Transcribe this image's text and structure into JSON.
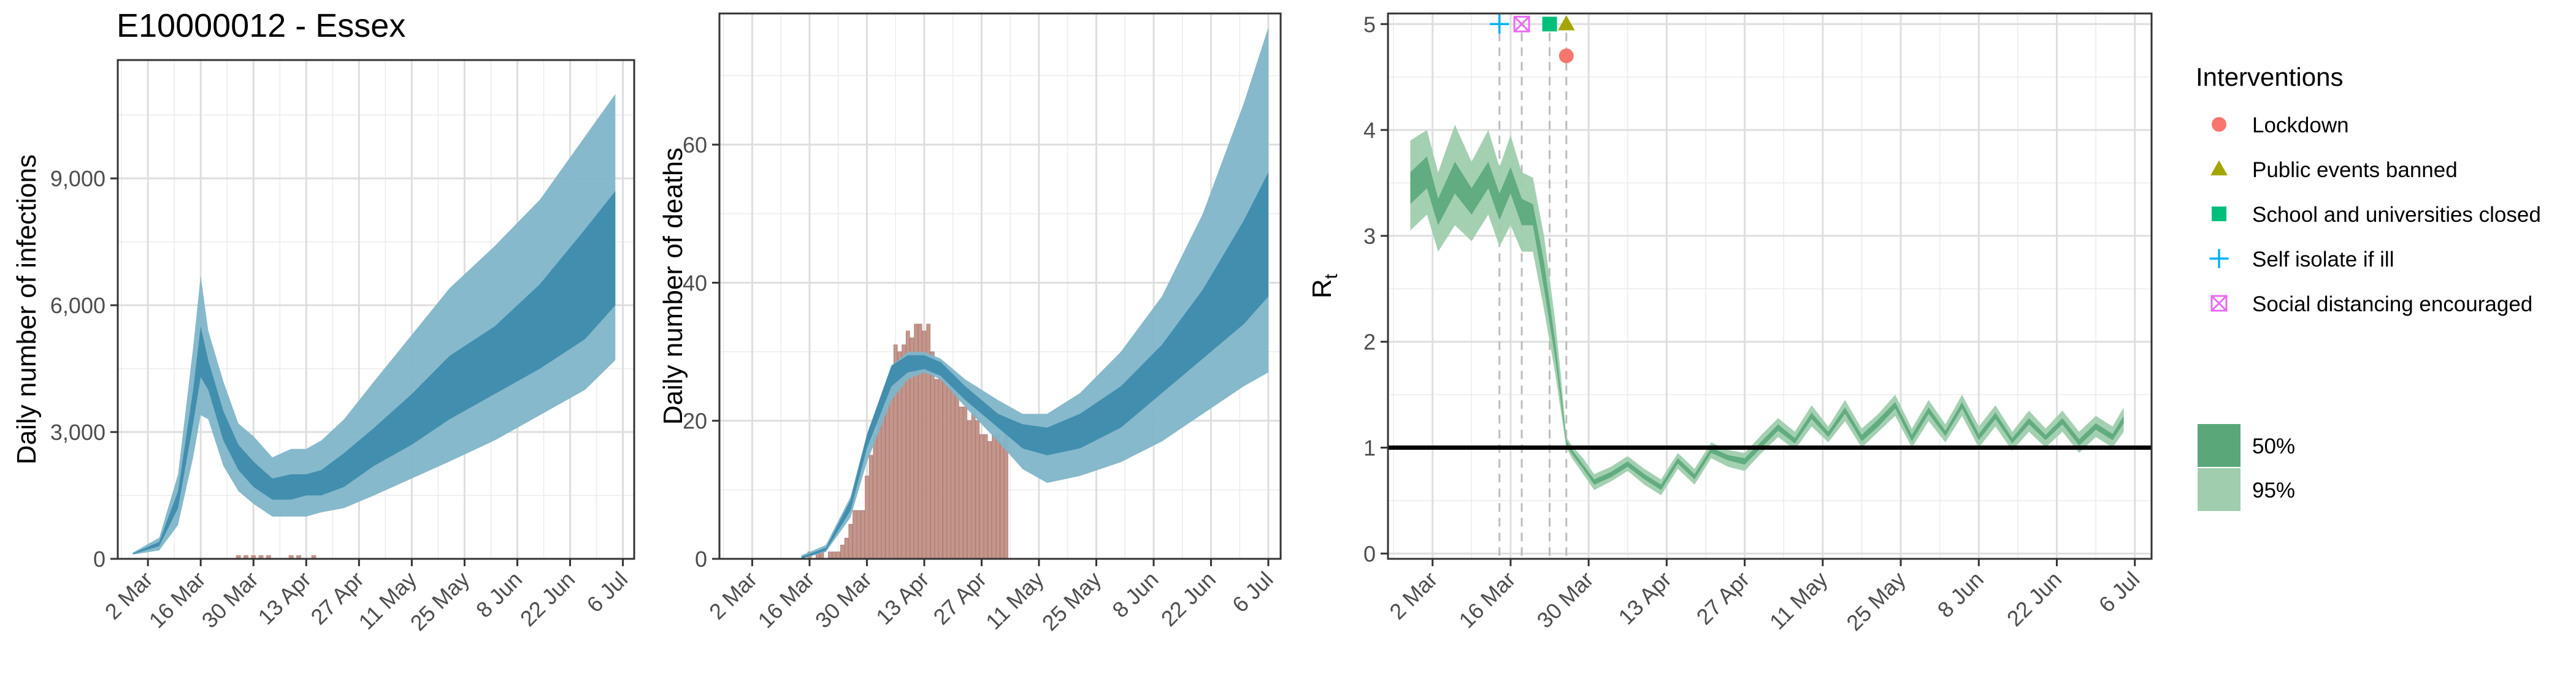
{
  "title": "E10000012 - Essex",
  "colors": {
    "infect_95": "#7fb5c9",
    "infect_50": "#3b8aab",
    "deaths_obs": "#c4968c",
    "rt_95": "#9fcdae",
    "rt_50": "#5aa77a",
    "grid": "#ebebeb",
    "vline": "#bdbdbd",
    "lockdown": "#f8766d",
    "public_events": "#a3a500",
    "school": "#00bf7d",
    "self_isolate": "#00b0f6",
    "social_distancing": "#e76bf3"
  },
  "x_ticks": [
    "2 Mar",
    "16 Mar",
    "30 Mar",
    "13 Apr",
    "27 Apr",
    "11 May",
    "25 May",
    "8 Jun",
    "22 Jun",
    "6 Jul"
  ],
  "legend": {
    "title": "Interventions",
    "items": [
      {
        "label": "Lockdown",
        "icon": "circle-icon",
        "color_key": "lockdown"
      },
      {
        "label": "Public events banned",
        "icon": "triangle-icon",
        "color_key": "public_events"
      },
      {
        "label": "School and universities closed",
        "icon": "square-icon",
        "color_key": "school"
      },
      {
        "label": "Self isolate if ill",
        "icon": "plus-icon",
        "color_key": "self_isolate"
      },
      {
        "label": "Social distancing encouraged",
        "icon": "boxed-x-icon",
        "color_key": "social_distancing"
      }
    ],
    "intervals": [
      {
        "label": "50%",
        "color_key": "rt_50"
      },
      {
        "label": "95%",
        "color_key": "rt_95"
      }
    ]
  },
  "chart_data": [
    {
      "type": "area",
      "title": "E10000012 - Essex",
      "ylabel": "Daily number of infections",
      "xlabel": "",
      "x_ticks": [
        "2 Mar",
        "16 Mar",
        "30 Mar",
        "13 Apr",
        "27 Apr",
        "11 May",
        "25 May",
        "8 Jun",
        "22 Jun",
        "6 Jul"
      ],
      "y_ticks": [
        "0",
        "3,000",
        "6,000",
        "9,000"
      ],
      "ylim": [
        0,
        11800
      ],
      "xlim_days": [
        -8,
        129
      ],
      "x_origin": "2020-03-02",
      "series": [
        {
          "name": "95%",
          "x": [
            -4,
            3,
            8,
            12,
            14,
            16,
            20,
            24,
            28,
            33,
            38,
            42,
            46,
            52,
            60,
            70,
            80,
            92,
            104,
            116,
            124
          ],
          "lower": [
            100,
            200,
            800,
            2400,
            3400,
            3300,
            2200,
            1600,
            1300,
            1000,
            1000,
            1000,
            1100,
            1200,
            1500,
            1900,
            2300,
            2800,
            3400,
            4000,
            4700
          ],
          "upper": [
            150,
            500,
            2000,
            5000,
            6700,
            5400,
            4200,
            3200,
            2900,
            2400,
            2600,
            2600,
            2800,
            3300,
            4200,
            5300,
            6400,
            7400,
            8500,
            10000,
            11000
          ]
        },
        {
          "name": "50%",
          "x": [
            -4,
            3,
            8,
            12,
            14,
            16,
            20,
            24,
            28,
            33,
            38,
            42,
            46,
            52,
            60,
            70,
            80,
            92,
            104,
            116,
            124
          ],
          "lower": [
            110,
            300,
            1200,
            3200,
            4300,
            4000,
            2800,
            2100,
            1700,
            1400,
            1400,
            1500,
            1500,
            1700,
            2200,
            2700,
            3300,
            3900,
            4500,
            5200,
            6000
          ],
          "upper": [
            130,
            400,
            1600,
            4000,
            5500,
            4700,
            3500,
            2700,
            2300,
            1900,
            2000,
            2000,
            2100,
            2500,
            3100,
            3900,
            4800,
            5500,
            6500,
            7800,
            8700
          ]
        }
      ]
    },
    {
      "type": "bar",
      "ylabel": "Daily number of deaths",
      "xlabel": "",
      "x_ticks": [
        "2 Mar",
        "16 Mar",
        "30 Mar",
        "13 Apr",
        "27 Apr",
        "11 May",
        "25 May",
        "8 Jun",
        "22 Jun",
        "6 Jul"
      ],
      "y_ticks": [
        "0",
        "20",
        "40",
        "60"
      ],
      "ylim": [
        0,
        79
      ],
      "xlim_days": [
        -8,
        129
      ],
      "x_origin": "2020-03-02",
      "observed": {
        "start_day": 14,
        "values": [
          1,
          0,
          1,
          1,
          0,
          1,
          1,
          1,
          2,
          3,
          5,
          7,
          7,
          7,
          12,
          15,
          18,
          22,
          22,
          24,
          26,
          31,
          30,
          31,
          33,
          32,
          34,
          34,
          33,
          34,
          30,
          26,
          28,
          28,
          25,
          26,
          24,
          22,
          22,
          20,
          21,
          20,
          18,
          18,
          17,
          18,
          18,
          17,
          18
        ]
      },
      "series": [
        {
          "name": "95%",
          "x": [
            12,
            18,
            24,
            28,
            34,
            38,
            42,
            46,
            52,
            60,
            66,
            72,
            80,
            90,
            100,
            110,
            120,
            126
          ],
          "lower": [
            0,
            1,
            6,
            14,
            23,
            26,
            27,
            26,
            22,
            17,
            13,
            11,
            12,
            14,
            17,
            21,
            25,
            27
          ],
          "upper": [
            0.5,
            2,
            9,
            18,
            28,
            30,
            30,
            29,
            26,
            23,
            21,
            21,
            24,
            30,
            38,
            50,
            66,
            77
          ]
        },
        {
          "name": "50%",
          "x": [
            12,
            18,
            24,
            28,
            34,
            38,
            42,
            46,
            52,
            60,
            66,
            72,
            80,
            90,
            100,
            110,
            120,
            126
          ],
          "lower": [
            0,
            1.2,
            7,
            16,
            25,
            27,
            27.5,
            26.5,
            23,
            19,
            16,
            15,
            16,
            19,
            24,
            29,
            34,
            38
          ],
          "upper": [
            0.3,
            1.6,
            8.5,
            18,
            28,
            29.5,
            29.5,
            28.5,
            25,
            21,
            19.5,
            19,
            21,
            25,
            31,
            39,
            49,
            56
          ]
        }
      ]
    },
    {
      "type": "area",
      "ylabel": "Rt",
      "xlabel": "",
      "x_ticks": [
        "2 Mar",
        "16 Mar",
        "30 Mar",
        "13 Apr",
        "27 Apr",
        "11 May",
        "25 May",
        "8 Jun",
        "22 Jun",
        "6 Jul"
      ],
      "y_ticks": [
        "0",
        "1",
        "2",
        "3",
        "4",
        "5"
      ],
      "ylim": [
        -0.05,
        5.1
      ],
      "xlim_days": [
        -8,
        129
      ],
      "x_origin": "2020-03-02",
      "reference_line": 1,
      "interventions": [
        {
          "name": "Self isolate if ill",
          "day": 12,
          "y": 5.0,
          "shape": "plus"
        },
        {
          "name": "Social distancing encouraged",
          "day": 16,
          "y": 5.0,
          "shape": "boxed-x"
        },
        {
          "name": "School and universities closed",
          "day": 21,
          "y": 5.0,
          "shape": "square"
        },
        {
          "name": "Public events banned",
          "day": 24,
          "y": 5.0,
          "shape": "triangle"
        },
        {
          "name": "Lockdown",
          "day": 24,
          "y": 4.7,
          "shape": "circle"
        }
      ],
      "series": [
        {
          "name": "95%",
          "x": [
            -4,
            -1,
            1,
            4,
            7,
            10,
            12,
            14,
            16,
            18,
            20,
            22,
            23,
            24,
            25,
            27,
            29,
            32,
            35,
            38,
            41,
            44,
            47,
            50,
            53,
            56,
            59,
            62,
            65,
            68,
            71,
            74,
            77,
            80,
            83,
            86,
            89,
            92,
            95,
            98,
            101,
            104,
            107,
            110,
            113,
            116,
            119,
            122,
            124
          ],
          "lower": [
            3.05,
            3.2,
            2.85,
            3.1,
            2.95,
            3.2,
            2.9,
            3.1,
            2.85,
            2.85,
            2.3,
            1.7,
            1.35,
            1.0,
            0.9,
            0.75,
            0.6,
            0.68,
            0.78,
            0.65,
            0.55,
            0.8,
            0.65,
            0.9,
            0.82,
            0.78,
            0.95,
            1.1,
            0.98,
            1.2,
            1.05,
            1.25,
            1.0,
            1.15,
            1.3,
            1.0,
            1.25,
            1.05,
            1.3,
            1.0,
            1.2,
            0.97,
            1.15,
            1.0,
            1.15,
            0.95,
            1.1,
            1.0,
            1.15
          ],
          "upper": [
            3.9,
            4.0,
            3.6,
            4.05,
            3.7,
            4.0,
            3.65,
            3.95,
            3.6,
            3.55,
            3.0,
            2.2,
            1.7,
            1.1,
            1.02,
            0.9,
            0.75,
            0.82,
            0.92,
            0.8,
            0.7,
            0.95,
            0.8,
            1.05,
            0.98,
            0.95,
            1.12,
            1.28,
            1.15,
            1.4,
            1.2,
            1.45,
            1.18,
            1.32,
            1.5,
            1.18,
            1.45,
            1.22,
            1.5,
            1.2,
            1.4,
            1.15,
            1.35,
            1.18,
            1.35,
            1.15,
            1.3,
            1.2,
            1.38
          ]
        },
        {
          "name": "50%",
          "x": [
            -4,
            -1,
            1,
            4,
            7,
            10,
            12,
            14,
            16,
            18,
            20,
            22,
            23,
            24,
            25,
            27,
            29,
            32,
            35,
            38,
            41,
            44,
            47,
            50,
            53,
            56,
            59,
            62,
            65,
            68,
            71,
            74,
            77,
            80,
            83,
            86,
            89,
            92,
            95,
            98,
            101,
            104,
            107,
            110,
            113,
            116,
            119,
            122,
            124
          ],
          "lower": [
            3.3,
            3.45,
            3.1,
            3.4,
            3.2,
            3.45,
            3.15,
            3.4,
            3.1,
            3.1,
            2.5,
            1.85,
            1.45,
            1.03,
            0.94,
            0.8,
            0.65,
            0.72,
            0.82,
            0.7,
            0.6,
            0.85,
            0.7,
            0.95,
            0.88,
            0.84,
            1.0,
            1.16,
            1.04,
            1.27,
            1.1,
            1.32,
            1.06,
            1.2,
            1.37,
            1.06,
            1.32,
            1.11,
            1.37,
            1.07,
            1.27,
            1.04,
            1.22,
            1.07,
            1.22,
            1.02,
            1.17,
            1.07,
            1.23
          ],
          "upper": [
            3.6,
            3.75,
            3.35,
            3.7,
            3.45,
            3.7,
            3.4,
            3.65,
            3.35,
            3.3,
            2.75,
            2.0,
            1.55,
            1.07,
            0.98,
            0.84,
            0.7,
            0.77,
            0.87,
            0.75,
            0.65,
            0.9,
            0.75,
            1.0,
            0.93,
            0.9,
            1.06,
            1.22,
            1.09,
            1.33,
            1.15,
            1.38,
            1.12,
            1.27,
            1.43,
            1.12,
            1.38,
            1.16,
            1.43,
            1.13,
            1.33,
            1.09,
            1.28,
            1.12,
            1.28,
            1.08,
            1.23,
            1.13,
            1.3
          ]
        }
      ]
    }
  ]
}
